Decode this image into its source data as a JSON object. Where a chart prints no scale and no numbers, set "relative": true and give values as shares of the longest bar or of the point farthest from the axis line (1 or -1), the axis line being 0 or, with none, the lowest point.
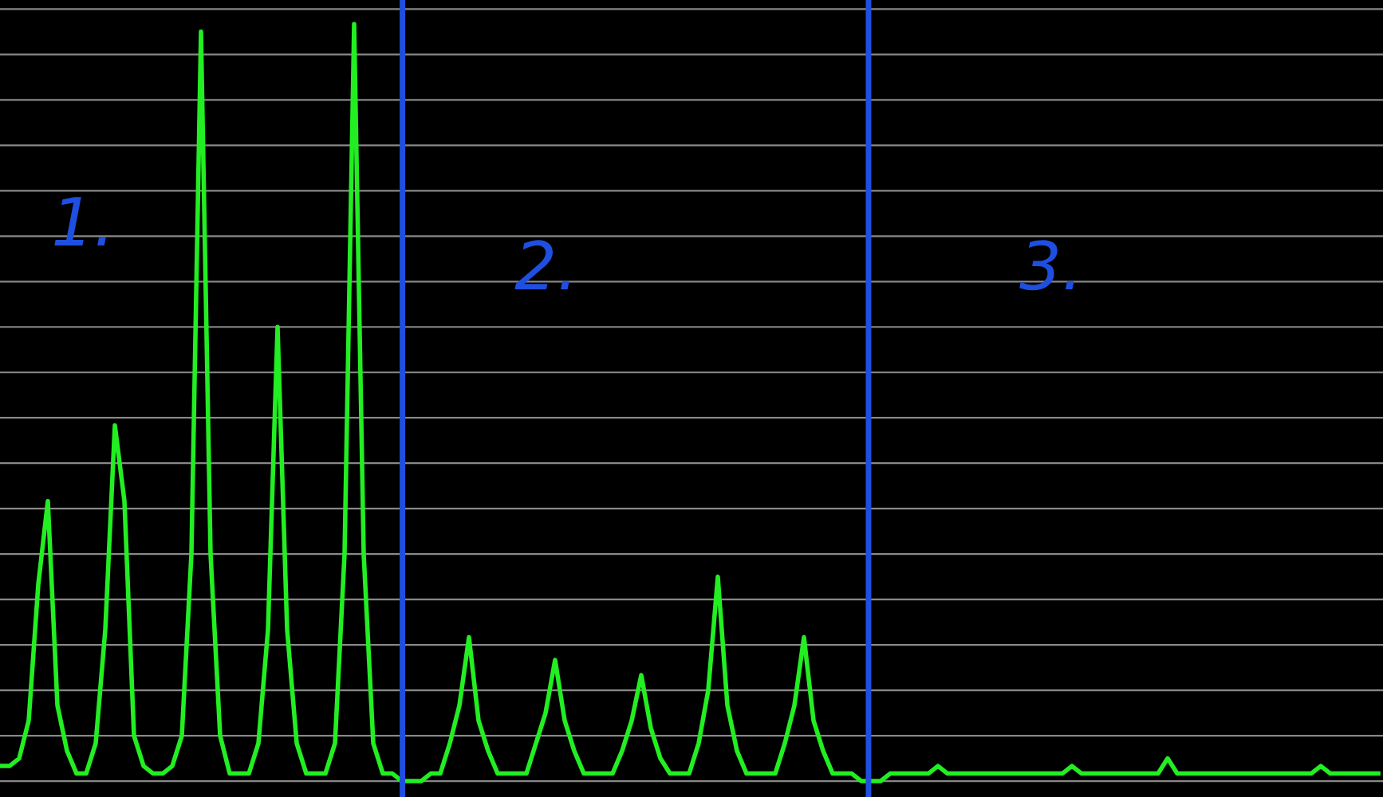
{
  "chart_data": {
    "type": "line",
    "relative": true,
    "grid": "y",
    "categories": [
      null,
      null,
      null,
      null,
      null,
      null,
      null,
      null,
      null,
      null,
      null,
      null,
      null,
      null,
      null,
      null,
      null,
      null,
      null,
      null,
      null,
      null,
      null,
      null,
      null,
      null,
      null,
      null,
      null,
      null,
      null,
      null,
      null,
      null,
      null,
      null,
      null,
      null,
      null,
      null,
      null,
      null,
      null,
      null,
      null,
      null,
      null,
      null,
      null,
      null,
      null,
      null,
      null,
      null,
      null,
      null,
      null,
      null,
      null,
      null,
      null,
      null,
      null,
      null,
      null,
      null,
      null,
      null,
      null,
      null,
      null,
      null,
      null,
      null,
      null,
      null,
      null,
      null,
      null,
      null,
      null,
      null,
      null,
      null,
      null,
      null,
      null,
      null,
      null,
      null,
      null,
      null,
      null,
      null,
      null,
      null,
      null,
      null,
      null,
      null,
      null,
      null,
      null,
      null,
      null,
      null,
      null,
      null,
      null,
      null,
      null,
      null,
      null,
      null,
      null,
      null,
      null,
      null,
      null,
      null,
      null,
      null,
      null,
      null,
      null,
      null,
      null,
      null,
      null,
      null,
      null,
      null,
      null,
      null,
      null,
      null,
      null,
      null,
      null,
      null,
      null,
      null,
      null,
      null,
      null
    ],
    "series": [
      {
        "color": "#22ee22",
        "values": [
          0.02,
          0.02,
          0.03,
          0.08,
          0.26,
          0.37,
          0.1,
          0.04,
          0.01,
          0.01,
          0.05,
          0.2,
          0.47,
          0.37,
          0.06,
          0.02,
          0.01,
          0.01,
          0.02,
          0.06,
          0.3,
          0.99,
          0.3,
          0.06,
          0.01,
          0.01,
          0.01,
          0.05,
          0.2,
          0.6,
          0.2,
          0.05,
          0.01,
          0.01,
          0.01,
          0.05,
          0.3,
          1.0,
          0.3,
          0.05,
          0.01,
          0.01,
          0.0,
          0.0,
          0.0,
          0.01,
          0.01,
          0.05,
          0.1,
          0.19,
          0.08,
          0.04,
          0.01,
          0.01,
          0.01,
          0.01,
          0.05,
          0.09,
          0.16,
          0.08,
          0.04,
          0.01,
          0.01,
          0.01,
          0.01,
          0.04,
          0.08,
          0.14,
          0.07,
          0.03,
          0.01,
          0.01,
          0.01,
          0.05,
          0.12,
          0.27,
          0.1,
          0.04,
          0.01,
          0.01,
          0.01,
          0.01,
          0.05,
          0.1,
          0.19,
          0.08,
          0.04,
          0.01,
          0.01,
          0.01,
          0.0,
          0.0,
          0.0,
          0.01,
          0.01,
          0.01,
          0.01,
          0.01,
          0.02,
          0.01,
          0.01,
          0.01,
          0.01,
          0.01,
          0.01,
          0.01,
          0.01,
          0.01,
          0.01,
          0.01,
          0.01,
          0.01,
          0.02,
          0.01,
          0.01,
          0.01,
          0.01,
          0.01,
          0.01,
          0.01,
          0.01,
          0.01,
          0.03,
          0.01,
          0.01,
          0.01,
          0.01,
          0.01,
          0.01,
          0.01,
          0.01,
          0.01,
          0.01,
          0.01,
          0.01,
          0.01,
          0.01,
          0.01,
          0.02,
          0.01,
          0.01,
          0.01,
          0.01,
          0.01,
          0.01
        ]
      }
    ],
    "annotations": [
      "1.",
      "2.",
      "3."
    ]
  }
}
